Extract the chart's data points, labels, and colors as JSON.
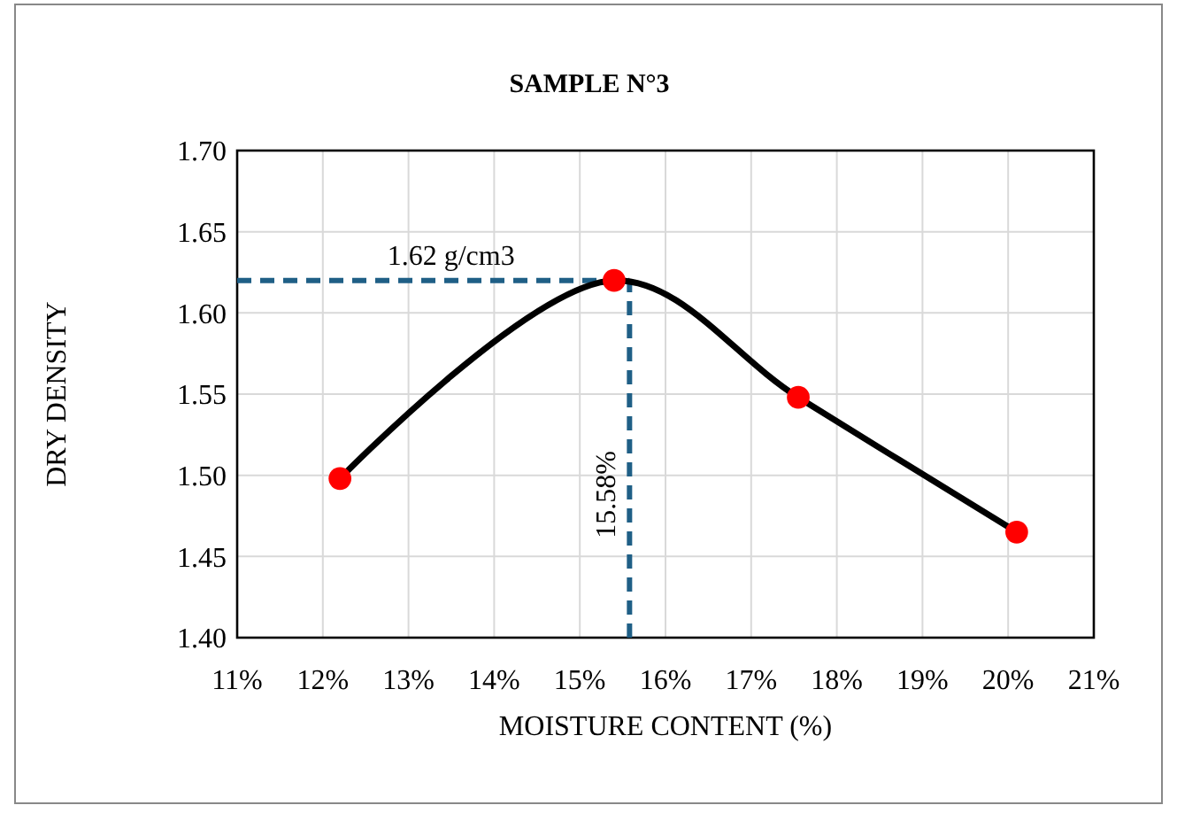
{
  "chart_data": {
    "type": "scatter",
    "title": "SAMPLE N°3",
    "xlabel": "MOISTURE CONTENT (%)",
    "ylabel": "DRY DENSITY",
    "x": [
      12.2,
      15.4,
      17.55,
      20.1
    ],
    "series": [
      {
        "type": "line",
        "color": "#000000",
        "values": [
          1.498,
          1.62,
          1.548,
          1.465
        ]
      },
      {
        "color": "#ff0000",
        "values": [
          1.498,
          1.62,
          1.548,
          1.465
        ]
      }
    ],
    "xlim": [
      11,
      21
    ],
    "xticks": [
      {
        "value": 11,
        "label": "11%"
      },
      {
        "value": 12,
        "label": "12%"
      },
      {
        "value": 13,
        "label": "13%"
      },
      {
        "value": 14,
        "label": "14%"
      },
      {
        "value": 15,
        "label": "15%"
      },
      {
        "value": 16,
        "label": "16%"
      },
      {
        "value": 17,
        "label": "17%"
      },
      {
        "value": 18,
        "label": "18%"
      },
      {
        "value": 19,
        "label": "19%"
      },
      {
        "value": 20,
        "label": "20%"
      },
      {
        "value": 21,
        "label": "21%"
      }
    ],
    "ylim": [
      1.4,
      1.7
    ],
    "yticks": [
      {
        "value": 1.4,
        "label": "1.40"
      },
      {
        "value": 1.45,
        "label": "1.45"
      },
      {
        "value": 1.5,
        "label": "1.50"
      },
      {
        "value": 1.55,
        "label": "1.55"
      },
      {
        "value": 1.6,
        "label": "1.60"
      },
      {
        "value": 1.65,
        "label": "1.65"
      },
      {
        "value": 1.7,
        "label": "1.70"
      }
    ],
    "grid": true,
    "ref_lines": [
      {
        "axis": "y",
        "value": 1.62,
        "label": "1.62 g/cm3",
        "color": "#1f5f86",
        "line_style": "dashed"
      },
      {
        "axis": "x",
        "value": 15.58,
        "label": "15.58%",
        "color": "#1f5f86",
        "line_style": "dashed"
      }
    ]
  }
}
